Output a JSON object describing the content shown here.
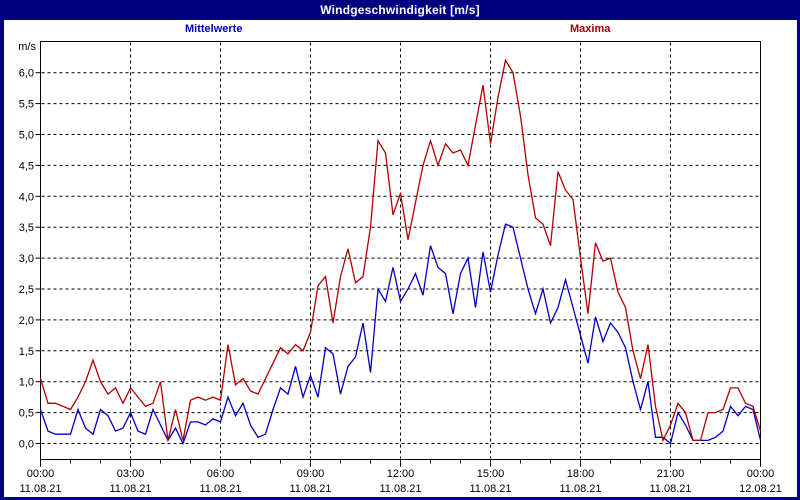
{
  "window": {
    "title": "Windgeschwindigkeit [m/s]"
  },
  "colors": {
    "title_bar_bg": "#000080",
    "title_fg": "#ffffff",
    "border": "#000080",
    "background": "#ffffff",
    "frame": "#000000",
    "grid": "#000000",
    "mean_series": "#0000c0",
    "max_series": "#b00000"
  },
  "legend": {
    "mean_label": "Mittelwerte",
    "mean_color": "#0000c0",
    "max_label": "Maxima",
    "max_color": "#a00000"
  },
  "chart_data": {
    "type": "line",
    "title": "Windgeschwindigkeit [m/s]",
    "ylabel": "m/s",
    "xlabel": "",
    "ylim": [
      0,
      6.5
    ],
    "ytick_step": 0.5,
    "ytick_labels": [
      "0,0",
      "0,5",
      "1,0",
      "1,5",
      "2,0",
      "2,5",
      "3,0",
      "3,5",
      "4,0",
      "4,5",
      "5,0",
      "5,5",
      "6,0"
    ],
    "grid": "dashed black, horizontal each 0.5 m/s, vertical each 3 h",
    "legend_position": "top",
    "x_start_hour": 0,
    "x_end_hour": 24,
    "sample_interval_minutes": 15,
    "xticks": [
      {
        "time": "00:00",
        "date": "11.08.21"
      },
      {
        "time": "03:00",
        "date": "11.08.21"
      },
      {
        "time": "06:00",
        "date": "11.08.21"
      },
      {
        "time": "09:00",
        "date": "11.08.21"
      },
      {
        "time": "12:00",
        "date": "11.08.21"
      },
      {
        "time": "15:00",
        "date": "11.08.21"
      },
      {
        "time": "18:00",
        "date": "11.08.21"
      },
      {
        "time": "21:00",
        "date": "11.08.21"
      },
      {
        "time": "00:00",
        "date": "12.08.21"
      }
    ],
    "series": [
      {
        "name": "Mittelwerte",
        "color": "#0000c0",
        "values": [
          0.55,
          0.2,
          0.15,
          0.15,
          0.15,
          0.55,
          0.25,
          0.15,
          0.55,
          0.45,
          0.2,
          0.25,
          0.5,
          0.2,
          0.15,
          0.55,
          0.3,
          0.05,
          0.25,
          0.0,
          0.35,
          0.35,
          0.3,
          0.4,
          0.35,
          0.75,
          0.45,
          0.65,
          0.3,
          0.1,
          0.15,
          0.55,
          0.9,
          0.8,
          1.25,
          0.75,
          1.1,
          0.75,
          1.55,
          1.45,
          0.8,
          1.25,
          1.4,
          1.95,
          1.15,
          2.5,
          2.3,
          2.85,
          2.3,
          2.5,
          2.75,
          2.4,
          3.2,
          2.85,
          2.75,
          2.1,
          2.75,
          3.0,
          2.2,
          3.1,
          2.45,
          3.05,
          3.55,
          3.5,
          3.0,
          2.5,
          2.1,
          2.5,
          1.95,
          2.2,
          2.65,
          2.2,
          1.75,
          1.3,
          2.05,
          1.65,
          1.95,
          1.8,
          1.55,
          1.0,
          0.55,
          1.0,
          0.1,
          0.1,
          0.0,
          0.5,
          0.3,
          0.05,
          0.05,
          0.05,
          0.1,
          0.2,
          0.6,
          0.45,
          0.6,
          0.55,
          0.05
        ]
      },
      {
        "name": "Maxima",
        "color": "#b00000",
        "values": [
          1.05,
          0.65,
          0.65,
          0.6,
          0.55,
          0.75,
          1.0,
          1.35,
          1.0,
          0.8,
          0.9,
          0.65,
          0.9,
          0.75,
          0.6,
          0.65,
          1.0,
          0.05,
          0.55,
          0.05,
          0.7,
          0.75,
          0.7,
          0.75,
          0.7,
          1.6,
          0.95,
          1.05,
          0.85,
          0.8,
          1.05,
          1.3,
          1.55,
          1.45,
          1.6,
          1.5,
          1.8,
          2.55,
          2.7,
          1.95,
          2.7,
          3.15,
          2.6,
          2.7,
          3.5,
          4.9,
          4.7,
          3.7,
          4.05,
          3.3,
          3.9,
          4.5,
          4.9,
          4.5,
          4.85,
          4.7,
          4.75,
          4.5,
          5.15,
          5.8,
          4.85,
          5.6,
          6.2,
          6.0,
          5.3,
          4.35,
          3.65,
          3.55,
          3.2,
          4.4,
          4.1,
          3.95,
          3.0,
          2.1,
          3.25,
          2.95,
          3.0,
          2.45,
          2.2,
          1.5,
          1.05,
          1.6,
          0.6,
          0.05,
          0.3,
          0.65,
          0.5,
          0.05,
          0.05,
          0.5,
          0.5,
          0.55,
          0.9,
          0.9,
          0.65,
          0.6,
          0.2
        ]
      }
    ]
  }
}
